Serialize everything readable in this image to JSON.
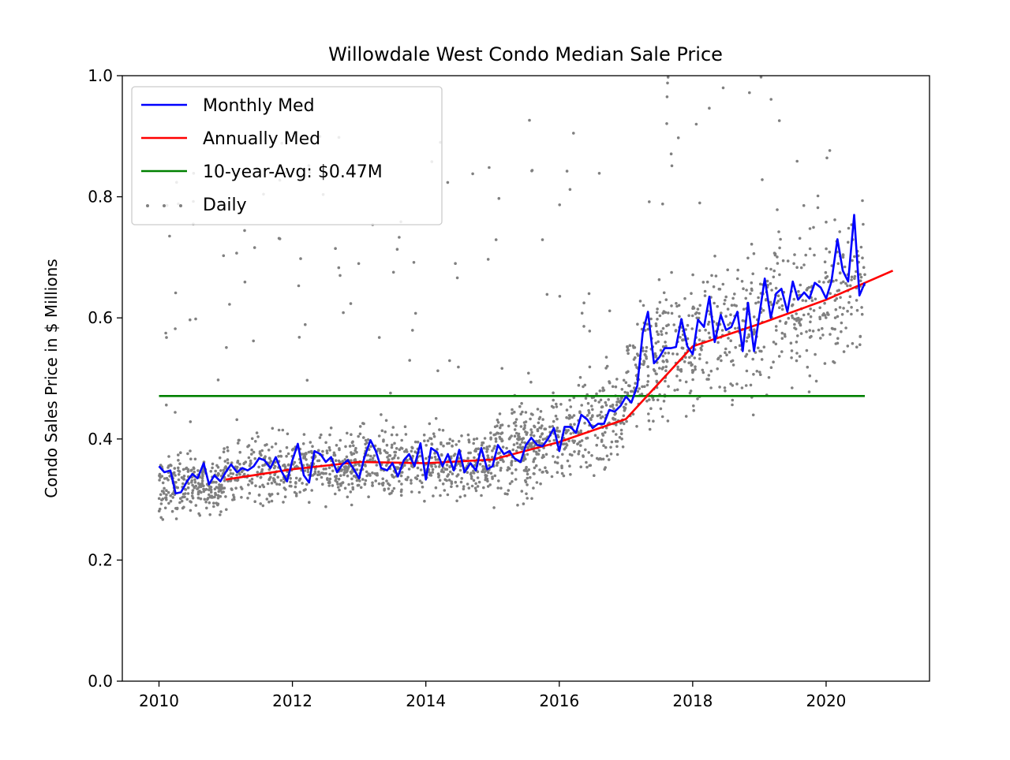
{
  "chart_data": {
    "type": "line",
    "title": "Willowdale West Condo Median Sale Price",
    "xlabel": "",
    "ylabel": "Condo Sales Price in $ Millions",
    "xlim": [
      2009.45,
      2021.55
    ],
    "ylim": [
      0.0,
      1.0
    ],
    "x_ticks": [
      2010,
      2012,
      2014,
      2016,
      2018,
      2020
    ],
    "x_tick_labels": [
      "2010",
      "2012",
      "2014",
      "2016",
      "2018",
      "2020"
    ],
    "y_ticks": [
      0.0,
      0.2,
      0.4,
      0.6,
      0.8,
      1.0
    ],
    "y_tick_labels": [
      "0.0",
      "0.2",
      "0.4",
      "0.6",
      "0.8",
      "1.0"
    ],
    "grid": false,
    "legend_position": "top-left",
    "colors": {
      "monthly": "#0000ff",
      "annual": "#ff0000",
      "average": "#008000",
      "daily": "#808080"
    },
    "series": [
      {
        "name": "Monthly Med",
        "kind": "line",
        "color": "#0000ff",
        "x": [
          2010.0,
          2010.08,
          2010.17,
          2010.25,
          2010.33,
          2010.42,
          2010.5,
          2010.58,
          2010.67,
          2010.75,
          2010.83,
          2010.92,
          2011.0,
          2011.08,
          2011.17,
          2011.25,
          2011.33,
          2011.42,
          2011.5,
          2011.58,
          2011.67,
          2011.75,
          2011.83,
          2011.92,
          2012.0,
          2012.08,
          2012.17,
          2012.25,
          2012.33,
          2012.42,
          2012.5,
          2012.58,
          2012.67,
          2012.75,
          2012.83,
          2012.92,
          2013.0,
          2013.08,
          2013.17,
          2013.25,
          2013.33,
          2013.42,
          2013.5,
          2013.58,
          2013.67,
          2013.75,
          2013.83,
          2013.92,
          2014.0,
          2014.08,
          2014.17,
          2014.25,
          2014.33,
          2014.42,
          2014.5,
          2014.58,
          2014.67,
          2014.75,
          2014.83,
          2014.92,
          2015.0,
          2015.08,
          2015.17,
          2015.25,
          2015.33,
          2015.42,
          2015.5,
          2015.58,
          2015.67,
          2015.75,
          2015.83,
          2015.92,
          2016.0,
          2016.08,
          2016.17,
          2016.25,
          2016.33,
          2016.42,
          2016.5,
          2016.58,
          2016.67,
          2016.75,
          2016.83,
          2016.92,
          2017.0,
          2017.08,
          2017.17,
          2017.25,
          2017.33,
          2017.42,
          2017.5,
          2017.58,
          2017.67,
          2017.75,
          2017.83,
          2017.92,
          2018.0,
          2018.08,
          2018.17,
          2018.25,
          2018.33,
          2018.42,
          2018.5,
          2018.58,
          2018.67,
          2018.75,
          2018.83,
          2018.92,
          2019.0,
          2019.08,
          2019.17,
          2019.25,
          2019.33,
          2019.42,
          2019.5,
          2019.58,
          2019.67,
          2019.75,
          2019.83,
          2019.92,
          2020.0,
          2020.08,
          2020.17,
          2020.25,
          2020.33,
          2020.42,
          2020.5,
          2020.58
        ],
        "y": [
          0.355,
          0.345,
          0.348,
          0.31,
          0.312,
          0.33,
          0.342,
          0.335,
          0.36,
          0.325,
          0.34,
          0.33,
          0.345,
          0.358,
          0.345,
          0.352,
          0.348,
          0.355,
          0.368,
          0.365,
          0.352,
          0.37,
          0.348,
          0.33,
          0.365,
          0.392,
          0.34,
          0.328,
          0.38,
          0.375,
          0.362,
          0.37,
          0.345,
          0.358,
          0.365,
          0.35,
          0.335,
          0.37,
          0.398,
          0.38,
          0.352,
          0.348,
          0.36,
          0.338,
          0.365,
          0.375,
          0.355,
          0.393,
          0.333,
          0.385,
          0.378,
          0.355,
          0.375,
          0.348,
          0.382,
          0.345,
          0.36,
          0.348,
          0.385,
          0.35,
          0.355,
          0.39,
          0.375,
          0.38,
          0.368,
          0.362,
          0.39,
          0.402,
          0.39,
          0.388,
          0.4,
          0.418,
          0.38,
          0.42,
          0.42,
          0.41,
          0.44,
          0.432,
          0.418,
          0.425,
          0.425,
          0.448,
          0.445,
          0.455,
          0.47,
          0.46,
          0.488,
          0.575,
          0.61,
          0.525,
          0.535,
          0.55,
          0.55,
          0.552,
          0.598,
          0.553,
          0.54,
          0.597,
          0.585,
          0.635,
          0.56,
          0.605,
          0.58,
          0.585,
          0.61,
          0.545,
          0.625,
          0.545,
          0.605,
          0.665,
          0.6,
          0.64,
          0.648,
          0.61,
          0.66,
          0.63,
          0.642,
          0.632,
          0.658,
          0.65,
          0.632,
          0.66,
          0.73,
          0.678,
          0.66,
          0.77,
          0.637,
          0.658
        ]
      },
      {
        "name": "Annually Med",
        "kind": "line",
        "color": "#ff0000",
        "x": [
          2011.0,
          2012.0,
          2013.0,
          2014.0,
          2015.0,
          2016.0,
          2017.0,
          2018.0,
          2019.0,
          2020.0,
          2021.0
        ],
        "y": [
          0.333,
          0.35,
          0.362,
          0.36,
          0.366,
          0.395,
          0.433,
          0.553,
          0.59,
          0.63,
          0.678
        ]
      },
      {
        "name": "10-year-Avg: $0.47M",
        "kind": "hline",
        "color": "#008000",
        "x": [
          2010.0,
          2020.58
        ],
        "y": [
          0.471,
          0.471
        ]
      },
      {
        "name": "Daily",
        "kind": "scatter",
        "color": "#808080",
        "regimes": [
          {
            "x": [
              2010.0,
              2011.0
            ],
            "center": [
              0.32,
              0.33
            ],
            "spread": 0.04,
            "count": 260
          },
          {
            "x": [
              2011.0,
              2013.0
            ],
            "center": [
              0.34,
              0.36
            ],
            "spread": 0.045,
            "count": 420
          },
          {
            "x": [
              2013.0,
              2015.0
            ],
            "center": [
              0.36,
              0.36
            ],
            "spread": 0.045,
            "count": 420
          },
          {
            "x": [
              2015.0,
              2017.0
            ],
            "center": [
              0.37,
              0.44
            ],
            "spread": 0.06,
            "count": 470
          },
          {
            "x": [
              2017.0,
              2018.0
            ],
            "center": [
              0.5,
              0.56
            ],
            "spread": 0.08,
            "count": 220
          },
          {
            "x": [
              2018.0,
              2020.6
            ],
            "center": [
              0.56,
              0.66
            ],
            "spread": 0.1,
            "count": 440
          }
        ],
        "outlier_count": 140
      }
    ],
    "legend": [
      {
        "label": "Monthly Med",
        "color": "#0000ff",
        "marker": "line"
      },
      {
        "label": "Annually Med",
        "color": "#ff0000",
        "marker": "line"
      },
      {
        "label": "10-year-Avg: $0.47M",
        "color": "#008000",
        "marker": "line"
      },
      {
        "label": "Daily",
        "color": "#808080",
        "marker": "dot"
      }
    ]
  }
}
